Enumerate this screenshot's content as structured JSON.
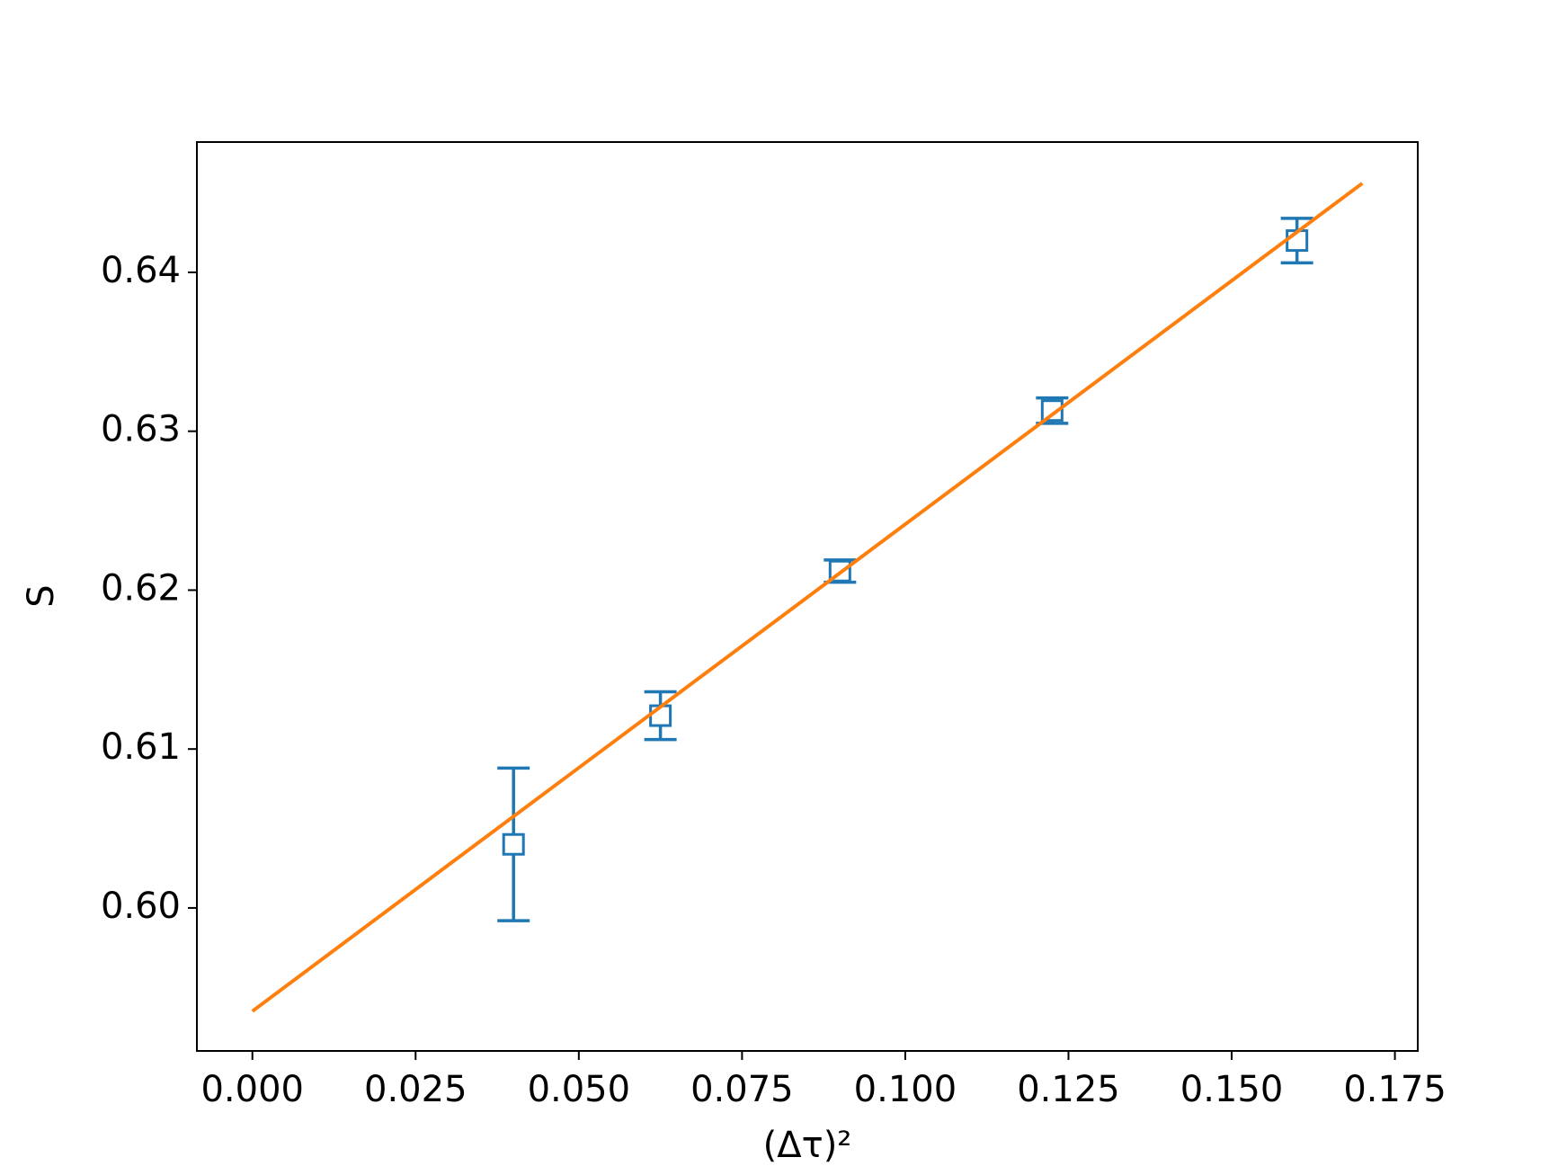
{
  "chart_data": {
    "type": "scatter",
    "xlabel": "(Δτ)²",
    "ylabel": "S",
    "xlim": [
      -0.0085,
      0.1785
    ],
    "ylim": [
      0.591,
      0.6482
    ],
    "xticks": [
      {
        "value": 0,
        "label": "0.000"
      },
      {
        "value": 0.025,
        "label": "0.025"
      },
      {
        "value": 0.05,
        "label": "0.050"
      },
      {
        "value": 0.075,
        "label": "0.075"
      },
      {
        "value": 0.1,
        "label": "0.100"
      },
      {
        "value": 0.125,
        "label": "0.125"
      },
      {
        "value": 0.15,
        "label": "0.150"
      },
      {
        "value": 0.175,
        "label": "0.175"
      }
    ],
    "yticks": [
      {
        "value": 0.6,
        "label": "0.60"
      },
      0.61,
      0.62,
      0.63,
      0.64
    ],
    "grid": false,
    "series": [
      {
        "style": "errorbar",
        "marker": "square",
        "color": "#1f77b4",
        "x": [
          0.04,
          0.0625,
          0.09,
          0.1225,
          0.16
        ],
        "values": [
          0.604,
          0.6121,
          0.6212,
          0.6313,
          0.642
        ],
        "errors": [
          0.0048,
          0.0015,
          0.0007,
          0.0008,
          0.0014
        ]
      },
      {
        "style": "line",
        "color": "#ff7f0e",
        "x": [
          0,
          0.17
        ],
        "values": [
          0.5935,
          0.6456
        ]
      }
    ]
  }
}
